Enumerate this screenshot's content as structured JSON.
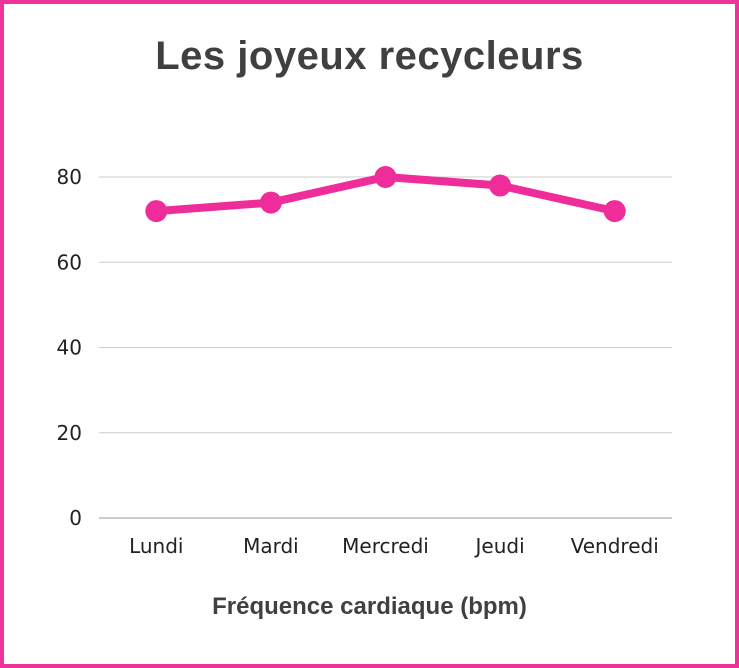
{
  "chart_data": {
    "type": "line",
    "title": "Les joyeux recycleurs",
    "xlabel": "Fréquence cardiaque (bpm)",
    "ylabel": "",
    "categories": [
      "Lundi",
      "Mardi",
      "Mercredi",
      "Jeudi",
      "Vendredi"
    ],
    "series": [
      {
        "values": [
          72,
          74,
          80,
          78,
          72
        ]
      }
    ],
    "ylim": [
      0,
      80
    ],
    "yticks": [
      "0",
      "20",
      "40",
      "60",
      "80"
    ],
    "grid": true,
    "legend": "none",
    "colors": {
      "line": "#ee2d9b",
      "border": "#ee3399",
      "grid": "#cccccc",
      "axis": "#999999",
      "title": "#404040"
    }
  }
}
